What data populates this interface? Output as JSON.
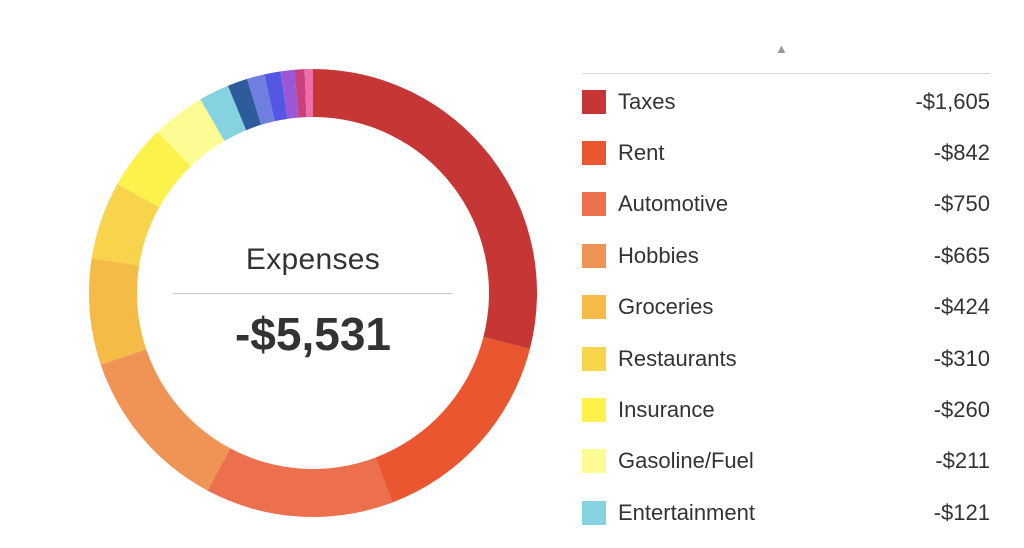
{
  "summary": {
    "title": "Expenses",
    "total": "-$5,531"
  },
  "legend": {
    "sort_glyph": "▲"
  },
  "chart_data": {
    "type": "pie",
    "variant": "donut",
    "title": "Expenses",
    "total_label": "-$5,531",
    "legend_placement": "right",
    "series": [
      {
        "name": "Taxes",
        "value": 1605,
        "display": "-$1,605",
        "color": "#c53634"
      },
      {
        "name": "Rent",
        "value": 842,
        "display": "-$842",
        "color": "#e9562f"
      },
      {
        "name": "Automotive",
        "value": 750,
        "display": "-$750",
        "color": "#ec704d"
      },
      {
        "name": "Hobbies",
        "value": 665,
        "display": "-$665",
        "color": "#ef9455"
      },
      {
        "name": "Groceries",
        "value": 424,
        "display": "-$424",
        "color": "#f4bc47"
      },
      {
        "name": "Restaurants",
        "value": 310,
        "display": "-$310",
        "color": "#f8d44d"
      },
      {
        "name": "Insurance",
        "value": 260,
        "display": "-$260",
        "color": "#fdf24c"
      },
      {
        "name": "Gasoline/Fuel",
        "value": 211,
        "display": "-$211",
        "color": "#fdfb93"
      },
      {
        "name": "Entertainment",
        "value": 121,
        "display": "-$121",
        "color": "#85d2e0"
      },
      {
        "name": "",
        "value": 80,
        "display": "",
        "color": "#2e5b9c"
      },
      {
        "name": "",
        "value": 70,
        "display": "",
        "color": "#6f7fe0"
      },
      {
        "name": "",
        "value": 65,
        "display": "",
        "color": "#5457e4"
      },
      {
        "name": "",
        "value": 55,
        "display": "",
        "color": "#9a58d6"
      },
      {
        "name": "",
        "value": 40,
        "display": "",
        "color": "#c9417c"
      },
      {
        "name": "",
        "value": 33,
        "display": "",
        "color": "#ee6ea6"
      }
    ]
  }
}
